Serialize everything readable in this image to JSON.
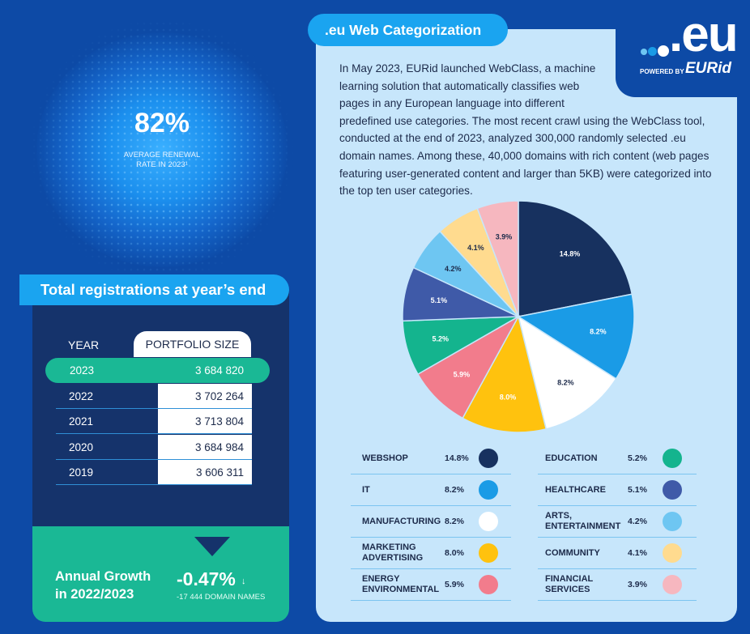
{
  "renewal": {
    "value": "82%",
    "label_line1": "AVERAGE RENEWAL",
    "label_line2": "RATE IN 2023¹"
  },
  "registrations": {
    "title": "Total registrations at year’s end",
    "col_year": "YEAR",
    "col_portfolio": "PORTFOLIO SIZE",
    "rows": [
      {
        "year": "2023",
        "size": "3 684 820",
        "highlight": true
      },
      {
        "year": "2022",
        "size": "3 702 264"
      },
      {
        "year": "2021",
        "size": "3 713 804"
      },
      {
        "year": "2020",
        "size": "3 684 984"
      },
      {
        "year": "2019",
        "size": "3 606 311"
      }
    ],
    "growth_label_line1": "Annual Growth",
    "growth_label_line2": "in 2022/2023",
    "growth_value": "-0.47%",
    "growth_arrow": "↓",
    "growth_sub": "-17 444 DOMAIN NAMES"
  },
  "web": {
    "title": ".eu Web Categorization",
    "intro_lines": [
      "In May 2023, EURid launched WebClass, a machine",
      "learning solution that automatically classifies web",
      "pages in any European language into different",
      "predefined use categories. The most recent crawl using the WebClass tool,",
      "conducted at the end of 2023, analyzed 300,000 randomly selected .eu",
      "domain names. Among these, 40,000 domains with rich content (web pages",
      "featuring user-generated content and larger than 5KB) were categorized into",
      "the top ten user categories."
    ]
  },
  "logo": {
    "text": ".eu",
    "powered": "POWERED BY",
    "brand": "EURid"
  },
  "colors": {
    "background": "#0d4aa6",
    "panel_light": "#c7e6fb",
    "accent_blue": "#1aa4f0",
    "accent_green": "#1ab895",
    "navy": "#15336b"
  },
  "chart_data": {
    "type": "pie",
    "title": "",
    "slices": [
      {
        "name": "WEBSHOP",
        "value": 14.8,
        "label": "14.8%",
        "color": "#17315f"
      },
      {
        "name": "IT",
        "value": 8.2,
        "label": "8.2%",
        "color": "#1a9be6"
      },
      {
        "name": "MANUFACTURING",
        "value": 8.2,
        "label": "8.2%",
        "color": "#ffffff"
      },
      {
        "name": "MARKETING ADVERTISING",
        "value": 8.0,
        "label": "8.0%",
        "color": "#ffc20e"
      },
      {
        "name": "ENERGY ENVIRONMENTAL",
        "value": 5.9,
        "label": "5.9%",
        "color": "#f27c8c"
      },
      {
        "name": "EDUCATION",
        "value": 5.2,
        "label": "5.2%",
        "color": "#14b48e"
      },
      {
        "name": "HEALTHCARE",
        "value": 5.1,
        "label": "5.1%",
        "color": "#3f5aa8"
      },
      {
        "name": "ARTS, ENTERTAINMENT",
        "value": 4.2,
        "label": "4.2%",
        "color": "#6ec6f2"
      },
      {
        "name": "COMMUNITY",
        "value": 4.1,
        "label": "4.1%",
        "color": "#ffdb8f"
      },
      {
        "name": "FINANCIAL SERVICES",
        "value": 3.9,
        "label": "3.9%",
        "color": "#f6b7bf"
      }
    ],
    "legend": [
      {
        "name_lines": [
          "WEBSHOP"
        ],
        "value": "14.8%",
        "color": "#17315f"
      },
      {
        "name_lines": [
          "IT"
        ],
        "value": "8.2%",
        "color": "#1a9be6"
      },
      {
        "name_lines": [
          "MANUFACTURING"
        ],
        "value": "8.2%",
        "color": "#ffffff"
      },
      {
        "name_lines": [
          "MARKETING",
          "ADVERTISING"
        ],
        "value": "8.0%",
        "color": "#ffc20e"
      },
      {
        "name_lines": [
          "ENERGY",
          "ENVIRONMENTAL"
        ],
        "value": "5.9%",
        "color": "#f27c8c"
      },
      {
        "name_lines": [
          "EDUCATION"
        ],
        "value": "5.2%",
        "color": "#14b48e"
      },
      {
        "name_lines": [
          "HEALTHCARE"
        ],
        "value": "5.1%",
        "color": "#3f5aa8"
      },
      {
        "name_lines": [
          "ARTS,",
          "ENTERTAINMENT"
        ],
        "value": "4.2%",
        "color": "#6ec6f2"
      },
      {
        "name_lines": [
          "COMMUNITY"
        ],
        "value": "4.1%",
        "color": "#ffdb8f"
      },
      {
        "name_lines": [
          "FINANCIAL",
          "SERVICES"
        ],
        "value": "3.9%",
        "color": "#f6b7bf"
      }
    ]
  }
}
